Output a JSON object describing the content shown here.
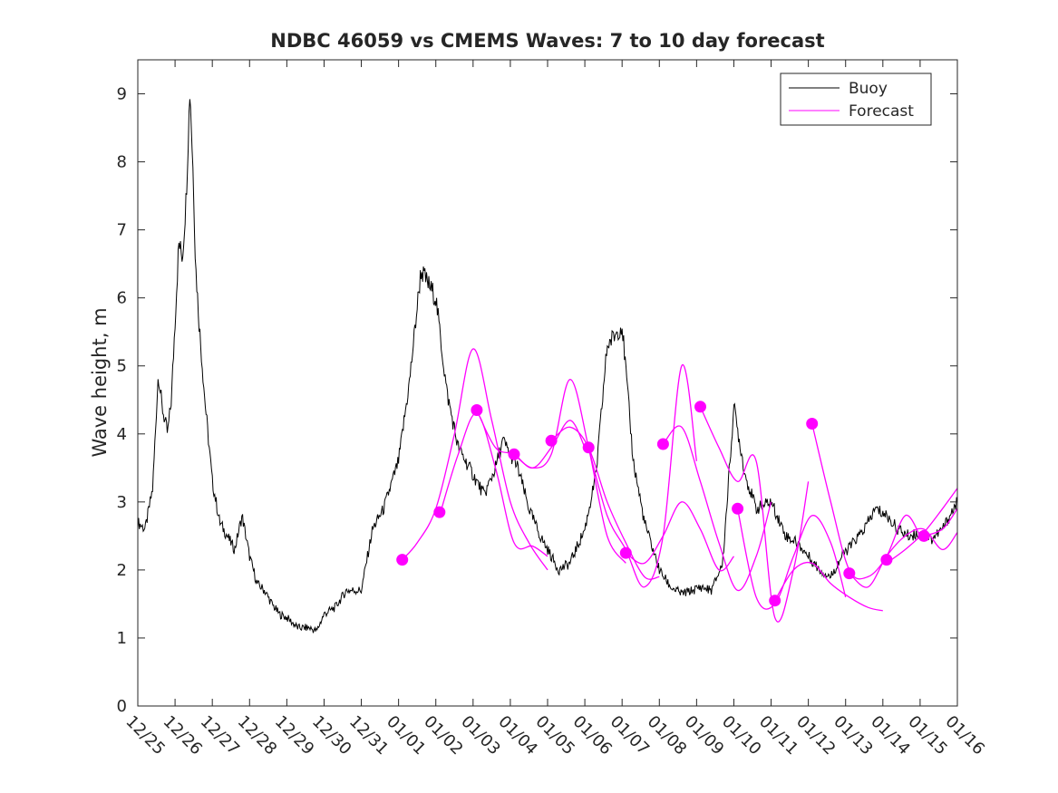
{
  "chart_data": {
    "type": "line",
    "title": "NDBC 46059 vs CMEMS Waves: 7 to 10 day forecast",
    "xlabel": "",
    "ylabel": "Wave height, m",
    "xlim": [
      0,
      22
    ],
    "ylim": [
      0,
      9.5
    ],
    "x_tick_labels": [
      "12/25",
      "12/26",
      "12/27",
      "12/28",
      "12/29",
      "12/30",
      "12/31",
      "01/01",
      "01/02",
      "01/03",
      "01/04",
      "01/05",
      "01/06",
      "01/07",
      "01/08",
      "01/09",
      "01/10",
      "01/11",
      "01/12",
      "01/13",
      "01/14",
      "01/15",
      "01/16"
    ],
    "y_ticks": [
      0,
      1,
      2,
      3,
      4,
      5,
      6,
      7,
      8,
      9
    ],
    "legend": {
      "position": "top-right",
      "entries": [
        "Buoy",
        "Forecast"
      ]
    },
    "colors": {
      "buoy": "#000000",
      "forecast": "#ff00ff",
      "axes": "#262626"
    },
    "buoy_series": {
      "name": "Buoy",
      "x": [
        0,
        0.2,
        0.4,
        0.55,
        0.65,
        0.8,
        0.9,
        1.1,
        1.2,
        1.3,
        1.4,
        1.5,
        1.55,
        1.65,
        1.8,
        2.0,
        2.2,
        2.4,
        2.6,
        2.8,
        3.0,
        3.2,
        3.4,
        3.6,
        3.8,
        4.0,
        4.3,
        4.6,
        4.8,
        5.0,
        5.3,
        5.6,
        6.0,
        6.3,
        6.6,
        7.0,
        7.3,
        7.6,
        8.0,
        8.3,
        8.6,
        9.0,
        9.3,
        9.6,
        9.8,
        10.0,
        10.2,
        10.5,
        10.8,
        11.0,
        11.3,
        11.6,
        12.0,
        12.3,
        12.6,
        13.0,
        13.3,
        13.6,
        14.0,
        14.3,
        14.6,
        14.9,
        15.1,
        15.4,
        15.7,
        16.0,
        16.3,
        16.6,
        17.0,
        17.4,
        17.7,
        18.0,
        18.3,
        18.6,
        18.9,
        19.2,
        19.5,
        19.8,
        20.1,
        20.4,
        20.7,
        21.0,
        21.3,
        21.6,
        22.0
      ],
      "y": [
        2.7,
        2.6,
        3.2,
        4.9,
        4.4,
        4.0,
        4.5,
        6.8,
        6.6,
        7.5,
        9.1,
        7.6,
        6.5,
        5.6,
        4.5,
        3.3,
        2.7,
        2.5,
        2.3,
        2.8,
        2.2,
        1.8,
        1.7,
        1.5,
        1.35,
        1.3,
        1.15,
        1.15,
        1.1,
        1.35,
        1.45,
        1.7,
        1.7,
        2.6,
        2.9,
        3.6,
        4.8,
        6.4,
        6.0,
        4.6,
        3.8,
        3.4,
        3.1,
        3.5,
        3.9,
        3.7,
        3.5,
        2.9,
        2.5,
        2.3,
        2.0,
        2.1,
        2.6,
        3.4,
        5.3,
        5.6,
        3.6,
        2.7,
        2.0,
        1.75,
        1.65,
        1.7,
        1.75,
        1.7,
        2.1,
        4.4,
        3.4,
        2.9,
        3.0,
        2.5,
        2.4,
        2.2,
        2.0,
        1.9,
        2.2,
        2.4,
        2.6,
        2.9,
        2.8,
        2.6,
        2.5,
        2.55,
        2.45,
        2.6,
        3.0
      ]
    },
    "forecast_series": [
      {
        "name": "Forecast",
        "x": [
          7.1,
          7.5,
          8.0,
          8.5,
          9.0,
          9.5,
          10.0,
          10.5,
          11.0
        ],
        "y": [
          2.15,
          2.4,
          2.9,
          4.0,
          5.25,
          4.2,
          3.0,
          2.4,
          2.0
        ]
      },
      {
        "name": "Forecast",
        "x": [
          8.1,
          8.6,
          9.1,
          9.6,
          10.1,
          10.6,
          11.0
        ],
        "y": [
          2.8,
          3.7,
          4.3,
          3.5,
          2.4,
          2.35,
          2.2
        ]
      },
      {
        "name": "Forecast",
        "x": [
          9.1,
          9.6,
          10.1,
          10.6,
          11.1,
          11.6,
          12.0
        ],
        "y": [
          4.35,
          3.8,
          3.7,
          3.5,
          3.8,
          4.2,
          3.8
        ]
      },
      {
        "name": "Forecast",
        "x": [
          10.1,
          10.6,
          11.1,
          11.6,
          12.1,
          12.6,
          13.1
        ],
        "y": [
          3.7,
          3.5,
          3.7,
          4.8,
          3.8,
          2.5,
          2.1
        ]
      },
      {
        "name": "Forecast",
        "x": [
          11.1,
          11.6,
          12.1,
          12.6,
          13.1,
          13.6,
          14.0
        ],
        "y": [
          3.9,
          4.1,
          3.8,
          3.0,
          2.4,
          1.9,
          1.9
        ]
      },
      {
        "name": "Forecast",
        "x": [
          12.1,
          12.6,
          13.1,
          13.6,
          14.1,
          14.6,
          15.0
        ],
        "y": [
          3.8,
          2.8,
          2.3,
          1.75,
          2.5,
          5.0,
          3.6
        ]
      },
      {
        "name": "Forecast",
        "x": [
          13.1,
          13.6,
          14.1,
          14.6,
          15.1,
          15.6,
          16.0
        ],
        "y": [
          2.25,
          2.1,
          2.5,
          3.0,
          2.6,
          2.0,
          2.2
        ]
      },
      {
        "name": "Forecast",
        "x": [
          14.1,
          14.6,
          15.1,
          15.6,
          16.1,
          16.6,
          17.0
        ],
        "y": [
          3.85,
          4.1,
          3.3,
          2.4,
          1.7,
          2.2,
          3.0
        ]
      },
      {
        "name": "Forecast",
        "x": [
          15.1,
          15.6,
          16.1,
          16.6,
          17.1,
          17.6,
          18.0
        ],
        "y": [
          4.4,
          3.8,
          3.3,
          3.6,
          1.3,
          2.0,
          3.3
        ]
      },
      {
        "name": "Forecast",
        "x": [
          16.1,
          16.6,
          17.1,
          17.6,
          18.1,
          18.6,
          19.0
        ],
        "y": [
          2.9,
          1.6,
          1.5,
          2.2,
          2.8,
          2.4,
          1.6
        ]
      },
      {
        "name": "Forecast",
        "x": [
          17.1,
          17.6,
          18.1,
          18.6,
          19.1,
          19.6,
          20.0
        ],
        "y": [
          1.55,
          2.0,
          2.1,
          1.8,
          1.6,
          1.45,
          1.4
        ]
      },
      {
        "name": "Forecast",
        "x": [
          18.1,
          18.6,
          19.1,
          19.6,
          20.1,
          20.6,
          21.0
        ],
        "y": [
          4.15,
          3.0,
          2.0,
          1.9,
          2.2,
          2.8,
          2.5
        ]
      },
      {
        "name": "Forecast",
        "x": [
          19.1,
          19.6,
          20.1,
          20.6,
          21.1,
          21.6,
          22.0
        ],
        "y": [
          1.95,
          1.75,
          2.2,
          2.5,
          2.6,
          2.3,
          2.55
        ]
      },
      {
        "name": "Forecast",
        "x": [
          20.1,
          20.6,
          21.1,
          21.6,
          22.0
        ],
        "y": [
          2.1,
          2.3,
          2.55,
          2.9,
          3.2
        ]
      },
      {
        "name": "Forecast",
        "x": [
          21.1,
          21.6,
          22.0
        ],
        "y": [
          2.5,
          2.6,
          2.9
        ]
      }
    ],
    "forecast_markers": {
      "x": [
        7.1,
        8.1,
        9.1,
        10.1,
        11.1,
        12.1,
        13.1,
        14.1,
        15.1,
        16.1,
        17.1,
        18.1,
        19.1,
        20.1,
        21.1
      ],
      "y": [
        2.15,
        2.85,
        4.35,
        3.7,
        3.9,
        3.8,
        2.25,
        3.85,
        4.4,
        2.9,
        1.55,
        4.15,
        1.95,
        2.15,
        2.5
      ]
    }
  }
}
